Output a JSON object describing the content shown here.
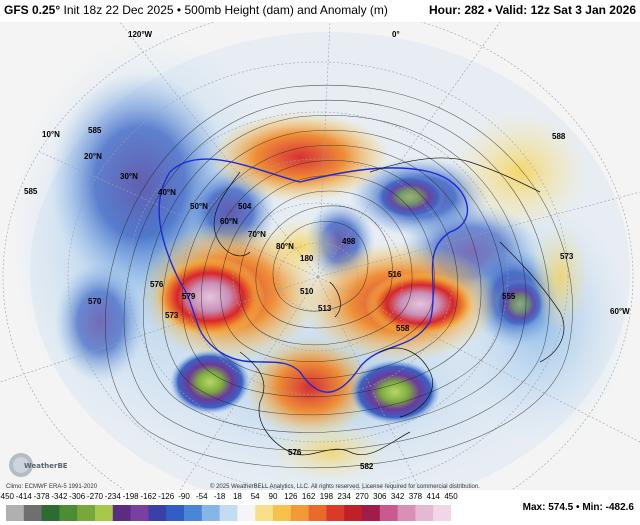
{
  "header": {
    "model": "GFS 0.25°",
    "init": "Init 18z 22 Dec 2025",
    "separator": "•",
    "product": "500mb Height (dam) and Anomaly (m)",
    "hour_label": "Hour: 282",
    "valid_label": "Valid: 12z Sat 3 Jan 2026"
  },
  "map": {
    "latitude_labels": [
      "10°N",
      "20°N",
      "30°N",
      "40°N",
      "50°N",
      "60°N",
      "70°N",
      "80°N"
    ],
    "longitude_labels": [
      "180",
      "120°W",
      "60°W",
      "0°"
    ],
    "height_labels": [
      "576",
      "579",
      "573",
      "570",
      "555",
      "582",
      "504",
      "498",
      "510",
      "513",
      "576",
      "558",
      "516",
      "585",
      "585",
      "588",
      "573"
    ],
    "colors": {
      "strong_negative": "#8a4f9e",
      "negative": "#3a62c4",
      "weak_negative": "#7fb3e6",
      "neutral": "#f5f5f5",
      "weak_positive": "#f6d35a",
      "positive": "#ef8a2e",
      "strong_positive": "#d7262b",
      "extreme_positive": "#c98fb8",
      "extreme_negative": "#7fae3f"
    }
  },
  "footer": {
    "climo": "Climo: ECMWF ERA-5 1991-2020",
    "copyright": "© 2025 WeatherBELL Analytics, LLC. All rights reserved. License required for commercial distribution.",
    "logo_text": "WeatherBELL"
  },
  "colorbar": {
    "ticks": [
      "-450",
      "-414",
      "-378",
      "-342",
      "-306",
      "-270",
      "-234",
      "-198",
      "-162",
      "-126",
      "-90",
      "-54",
      "-18",
      "18",
      "54",
      "90",
      "126",
      "162",
      "198",
      "234",
      "270",
      "306",
      "342",
      "378",
      "414",
      "450"
    ],
    "colors": [
      "#b0b0b0",
      "#6f6f6f",
      "#2e6b2e",
      "#4c8c34",
      "#78a83c",
      "#a9c74a",
      "#5a2d82",
      "#7a3fa0",
      "#3b3fa8",
      "#2f5fc2",
      "#4a86d6",
      "#86b6e8",
      "#c3dcf2",
      "#f5f5f5",
      "#f8e08a",
      "#f6c24a",
      "#f2993a",
      "#ea6a2c",
      "#d93b28",
      "#c0202a",
      "#a01c4a",
      "#c85a8e",
      "#d98fb6",
      "#e7b8d2",
      "#f1d7e6"
    ],
    "max_label": "Max: 574.5",
    "min_label": "Min: -482.6"
  }
}
